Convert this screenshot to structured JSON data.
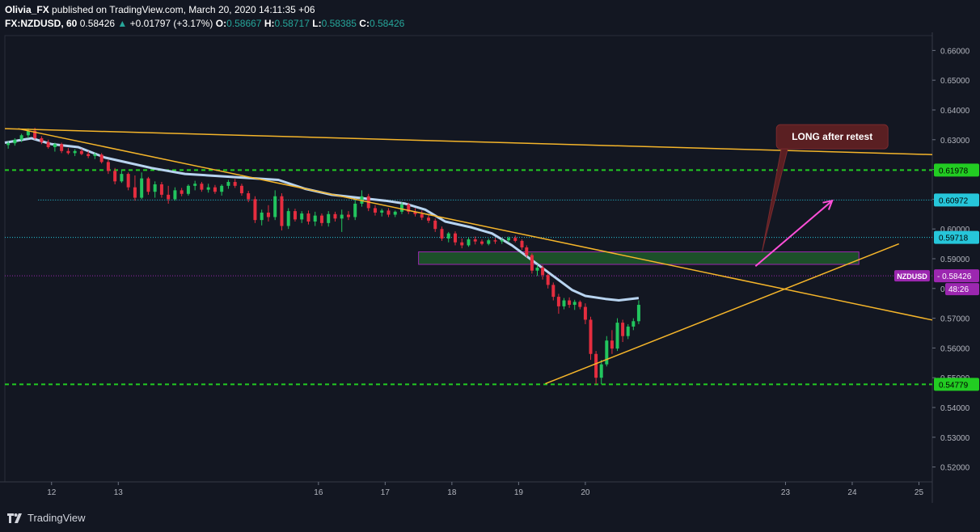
{
  "header": {
    "author": "Olivia_FX",
    "published_text": "published on TradingView.com, March 20, 2020 14:11:35 +06",
    "symbol": "FX:NZDUSD, 60",
    "last": "0.58426",
    "change_arrow": "▲",
    "change": "+0.01797 (+3.17%)",
    "o_label": "O:",
    "o_value": "0.58667",
    "h_label": "H:",
    "h_value": "0.58717",
    "l_label": "L:",
    "l_value": "0.58385",
    "c_label": "C:",
    "c_value": "0.58426"
  },
  "footer": {
    "brand": "TradingView"
  },
  "colors": {
    "background": "#131722",
    "up": "#22c55e",
    "down": "#e52d3f",
    "trendline": "#f5b52a",
    "support_resistance": "#22cc22",
    "cyan_level": "#26c6da",
    "moving_average": "#b8d4f0",
    "zone_fill": "#1f5a2a",
    "zone_border": "#9c27b0",
    "annotation_bg": "#5a1f22",
    "annotation_arrow": "#ff4fd8",
    "price_badge": "#9c27b0"
  },
  "chart_data": {
    "type": "candlestick",
    "symbol": "NZDUSD",
    "interval": "60",
    "ylim": [
      0.515,
      0.665
    ],
    "x_range_days": [
      11.3,
      25.2
    ],
    "x_ticks": [
      {
        "day": 12,
        "label": "12"
      },
      {
        "day": 13,
        "label": "13"
      },
      {
        "day": 16,
        "label": "16"
      },
      {
        "day": 17,
        "label": "17"
      },
      {
        "day": 18,
        "label": "18"
      },
      {
        "day": 19,
        "label": "19"
      },
      {
        "day": 20,
        "label": "20"
      },
      {
        "day": 23,
        "label": "23"
      },
      {
        "day": 24,
        "label": "24"
      },
      {
        "day": 25,
        "label": "25"
      }
    ],
    "y_ticks": [
      "0.66000",
      "0.65000",
      "0.64000",
      "0.63000",
      "0.62000",
      "0.61000",
      "0.60000",
      "0.59000",
      "0.58000",
      "0.57000",
      "0.56000",
      "0.55000",
      "0.54000",
      "0.53000",
      "0.52000"
    ],
    "price_labels": [
      {
        "value": "0.61978",
        "price": 0.61978,
        "kind": "green"
      },
      {
        "value": "0.60972",
        "price": 0.60972,
        "kind": "cyan"
      },
      {
        "value": "0.59718",
        "price": 0.59718,
        "kind": "cyan"
      },
      {
        "value": "0.54779",
        "price": 0.54779,
        "kind": "green"
      }
    ],
    "current_price": {
      "symbol": "NZDUSD",
      "value": "0.58426",
      "price": 0.58426,
      "countdown": "48:26"
    },
    "horizontal_lines": [
      {
        "price": 0.61978,
        "style": "dashed",
        "color": "#22cc22"
      },
      {
        "price": 0.60972,
        "style": "dotted",
        "color": "#26c6da",
        "from_day": 11.8
      },
      {
        "price": 0.59718,
        "style": "dotted",
        "color": "#26c6da"
      },
      {
        "price": 0.54779,
        "style": "dashed",
        "color": "#22cc22"
      }
    ],
    "trendlines": [
      {
        "from": [
          11.3,
          0.6337
        ],
        "to": [
          25.2,
          0.625
        ]
      },
      {
        "from": [
          11.5,
          0.6337
        ],
        "to": [
          25.2,
          0.5694
        ]
      },
      {
        "from": [
          19.4,
          0.548
        ],
        "to": [
          24.7,
          0.595
        ]
      }
    ],
    "zone": {
      "from_day": 17.5,
      "to_day": 24.1,
      "top": 0.5923,
      "bottom": 0.5881
    },
    "annotation": {
      "text": "LONG after retest",
      "box_day": 22.9,
      "box_price": 0.631,
      "pointer_price": 0.5925,
      "pointer_day": 22.65
    },
    "arrow": {
      "from": [
        22.55,
        0.5875
      ],
      "to": [
        23.7,
        0.6095
      ]
    },
    "moving_average": [
      [
        11.3,
        0.629
      ],
      [
        11.7,
        0.6305
      ],
      [
        12.0,
        0.6285
      ],
      [
        12.4,
        0.6275
      ],
      [
        12.8,
        0.624
      ],
      [
        13.1,
        0.6225
      ],
      [
        13.5,
        0.6205
      ],
      [
        14.0,
        0.6185
      ],
      [
        15.4,
        0.6165
      ],
      [
        15.8,
        0.6135
      ],
      [
        16.2,
        0.6115
      ],
      [
        16.6,
        0.6105
      ],
      [
        17.0,
        0.6095
      ],
      [
        17.3,
        0.6085
      ],
      [
        17.6,
        0.6065
      ],
      [
        17.9,
        0.6025
      ],
      [
        18.3,
        0.6005
      ],
      [
        18.6,
        0.5985
      ],
      [
        18.9,
        0.5945
      ],
      [
        19.2,
        0.5895
      ],
      [
        19.5,
        0.5845
      ],
      [
        19.8,
        0.5795
      ],
      [
        20.0,
        0.5775
      ],
      [
        20.3,
        0.5765
      ],
      [
        20.5,
        0.576
      ],
      [
        20.8,
        0.5768
      ]
    ],
    "candles": [
      {
        "d": 11.35,
        "o": 0.6282,
        "h": 0.6295,
        "l": 0.627,
        "c": 0.6288
      },
      {
        "d": 11.45,
        "o": 0.6288,
        "h": 0.6305,
        "l": 0.628,
        "c": 0.63
      },
      {
        "d": 11.55,
        "o": 0.63,
        "h": 0.632,
        "l": 0.6292,
        "c": 0.6315
      },
      {
        "d": 11.65,
        "o": 0.6315,
        "h": 0.6338,
        "l": 0.6305,
        "c": 0.633
      },
      {
        "d": 11.75,
        "o": 0.633,
        "h": 0.634,
        "l": 0.63,
        "c": 0.6305
      },
      {
        "d": 11.85,
        "o": 0.6305,
        "h": 0.6312,
        "l": 0.6285,
        "c": 0.6292
      },
      {
        "d": 11.95,
        "o": 0.6292,
        "h": 0.63,
        "l": 0.627,
        "c": 0.6275
      },
      {
        "d": 12.05,
        "o": 0.6275,
        "h": 0.629,
        "l": 0.626,
        "c": 0.6285
      },
      {
        "d": 12.15,
        "o": 0.6285,
        "h": 0.629,
        "l": 0.6255,
        "c": 0.6262
      },
      {
        "d": 12.25,
        "o": 0.6262,
        "h": 0.6272,
        "l": 0.625,
        "c": 0.6255
      },
      {
        "d": 12.35,
        "o": 0.6255,
        "h": 0.6268,
        "l": 0.6245,
        "c": 0.6262
      },
      {
        "d": 12.45,
        "o": 0.6262,
        "h": 0.627,
        "l": 0.6248,
        "c": 0.6252
      },
      {
        "d": 12.55,
        "o": 0.6252,
        "h": 0.6262,
        "l": 0.6238,
        "c": 0.6245
      },
      {
        "d": 12.65,
        "o": 0.6245,
        "h": 0.6258,
        "l": 0.6235,
        "c": 0.625
      },
      {
        "d": 12.75,
        "o": 0.625,
        "h": 0.6255,
        "l": 0.622,
        "c": 0.6225
      },
      {
        "d": 12.85,
        "o": 0.6225,
        "h": 0.6232,
        "l": 0.6185,
        "c": 0.6195
      },
      {
        "d": 12.95,
        "o": 0.6195,
        "h": 0.6205,
        "l": 0.615,
        "c": 0.616
      },
      {
        "d": 13.05,
        "o": 0.616,
        "h": 0.62,
        "l": 0.6155,
        "c": 0.6185
      },
      {
        "d": 13.15,
        "o": 0.6185,
        "h": 0.619,
        "l": 0.613,
        "c": 0.614
      },
      {
        "d": 13.25,
        "o": 0.614,
        "h": 0.618,
        "l": 0.6095,
        "c": 0.6105
      },
      {
        "d": 13.35,
        "o": 0.6105,
        "h": 0.619,
        "l": 0.61,
        "c": 0.617
      },
      {
        "d": 13.45,
        "o": 0.617,
        "h": 0.6175,
        "l": 0.6115,
        "c": 0.6125
      },
      {
        "d": 13.55,
        "o": 0.6125,
        "h": 0.616,
        "l": 0.6105,
        "c": 0.615
      },
      {
        "d": 13.65,
        "o": 0.615,
        "h": 0.6158,
        "l": 0.6105,
        "c": 0.6115
      },
      {
        "d": 13.75,
        "o": 0.6115,
        "h": 0.6145,
        "l": 0.6085,
        "c": 0.61
      },
      {
        "d": 13.85,
        "o": 0.61,
        "h": 0.614,
        "l": 0.6095,
        "c": 0.613
      },
      {
        "d": 13.95,
        "o": 0.613,
        "h": 0.6138,
        "l": 0.611,
        "c": 0.6118
      },
      {
        "d": 14.05,
        "o": 0.6118,
        "h": 0.615,
        "l": 0.6112,
        "c": 0.6145
      },
      {
        "d": 14.15,
        "o": 0.6145,
        "h": 0.6162,
        "l": 0.613,
        "c": 0.6152
      },
      {
        "d": 14.25,
        "o": 0.6152,
        "h": 0.6158,
        "l": 0.6125,
        "c": 0.6132
      },
      {
        "d": 14.35,
        "o": 0.6132,
        "h": 0.6152,
        "l": 0.6122,
        "c": 0.614
      },
      {
        "d": 14.45,
        "o": 0.614,
        "h": 0.6148,
        "l": 0.6118,
        "c": 0.6125
      },
      {
        "d": 14.55,
        "o": 0.6125,
        "h": 0.615,
        "l": 0.6112,
        "c": 0.6145
      },
      {
        "d": 14.65,
        "o": 0.6145,
        "h": 0.6165,
        "l": 0.6135,
        "c": 0.6158
      },
      {
        "d": 14.75,
        "o": 0.6158,
        "h": 0.6168,
        "l": 0.6138,
        "c": 0.6145
      },
      {
        "d": 14.85,
        "o": 0.6145,
        "h": 0.6152,
        "l": 0.6112,
        "c": 0.612
      },
      {
        "d": 14.95,
        "o": 0.612,
        "h": 0.6128,
        "l": 0.609,
        "c": 0.61
      },
      {
        "d": 15.05,
        "o": 0.61,
        "h": 0.611,
        "l": 0.602,
        "c": 0.603
      },
      {
        "d": 15.15,
        "o": 0.603,
        "h": 0.6065,
        "l": 0.6012,
        "c": 0.6055
      },
      {
        "d": 15.25,
        "o": 0.6055,
        "h": 0.608,
        "l": 0.6025,
        "c": 0.604
      },
      {
        "d": 15.35,
        "o": 0.604,
        "h": 0.613,
        "l": 0.603,
        "c": 0.611
      },
      {
        "d": 15.45,
        "o": 0.611,
        "h": 0.612,
        "l": 0.5995,
        "c": 0.601
      },
      {
        "d": 15.55,
        "o": 0.601,
        "h": 0.607,
        "l": 0.6,
        "c": 0.606
      },
      {
        "d": 15.65,
        "o": 0.606,
        "h": 0.6068,
        "l": 0.6025,
        "c": 0.6032
      },
      {
        "d": 15.75,
        "o": 0.6032,
        "h": 0.606,
        "l": 0.602,
        "c": 0.6052
      },
      {
        "d": 15.85,
        "o": 0.6052,
        "h": 0.6062,
        "l": 0.6015,
        "c": 0.6025
      },
      {
        "d": 15.95,
        "o": 0.6025,
        "h": 0.6058,
        "l": 0.601,
        "c": 0.6045
      },
      {
        "d": 16.05,
        "o": 0.6045,
        "h": 0.6052,
        "l": 0.601,
        "c": 0.602
      },
      {
        "d": 16.15,
        "o": 0.602,
        "h": 0.606,
        "l": 0.6008,
        "c": 0.605
      },
      {
        "d": 16.25,
        "o": 0.605,
        "h": 0.6058,
        "l": 0.6025,
        "c": 0.6035
      },
      {
        "d": 16.35,
        "o": 0.6035,
        "h": 0.6065,
        "l": 0.599,
        "c": 0.6048
      },
      {
        "d": 16.45,
        "o": 0.6048,
        "h": 0.606,
        "l": 0.603,
        "c": 0.604
      },
      {
        "d": 16.55,
        "o": 0.604,
        "h": 0.61,
        "l": 0.603,
        "c": 0.6085
      },
      {
        "d": 16.65,
        "o": 0.6085,
        "h": 0.613,
        "l": 0.6075,
        "c": 0.611
      },
      {
        "d": 16.75,
        "o": 0.611,
        "h": 0.6118,
        "l": 0.606,
        "c": 0.607
      },
      {
        "d": 16.85,
        "o": 0.607,
        "h": 0.608,
        "l": 0.6045,
        "c": 0.6055
      },
      {
        "d": 16.95,
        "o": 0.6055,
        "h": 0.6068,
        "l": 0.6042,
        "c": 0.6062
      },
      {
        "d": 17.05,
        "o": 0.6062,
        "h": 0.607,
        "l": 0.604,
        "c": 0.6048
      },
      {
        "d": 17.15,
        "o": 0.6048,
        "h": 0.6062,
        "l": 0.604,
        "c": 0.6058
      },
      {
        "d": 17.25,
        "o": 0.6058,
        "h": 0.609,
        "l": 0.605,
        "c": 0.6082
      },
      {
        "d": 17.35,
        "o": 0.6082,
        "h": 0.6088,
        "l": 0.605,
        "c": 0.6058
      },
      {
        "d": 17.45,
        "o": 0.6058,
        "h": 0.607,
        "l": 0.6042,
        "c": 0.605
      },
      {
        "d": 17.55,
        "o": 0.605,
        "h": 0.6062,
        "l": 0.603,
        "c": 0.6038
      },
      {
        "d": 17.65,
        "o": 0.6038,
        "h": 0.6048,
        "l": 0.602,
        "c": 0.6028
      },
      {
        "d": 17.75,
        "o": 0.6028,
        "h": 0.6035,
        "l": 0.599,
        "c": 0.6
      },
      {
        "d": 17.85,
        "o": 0.6,
        "h": 0.6008,
        "l": 0.596,
        "c": 0.5968
      },
      {
        "d": 17.95,
        "o": 0.5968,
        "h": 0.599,
        "l": 0.5955,
        "c": 0.5985
      },
      {
        "d": 18.05,
        "o": 0.5985,
        "h": 0.5992,
        "l": 0.5945,
        "c": 0.5955
      },
      {
        "d": 18.15,
        "o": 0.5955,
        "h": 0.5968,
        "l": 0.5935,
        "c": 0.5945
      },
      {
        "d": 18.25,
        "o": 0.5945,
        "h": 0.5972,
        "l": 0.594,
        "c": 0.5965
      },
      {
        "d": 18.35,
        "o": 0.5965,
        "h": 0.5975,
        "l": 0.5948,
        "c": 0.5958
      },
      {
        "d": 18.45,
        "o": 0.5958,
        "h": 0.5965,
        "l": 0.5945,
        "c": 0.595
      },
      {
        "d": 18.55,
        "o": 0.595,
        "h": 0.5968,
        "l": 0.5945,
        "c": 0.5962
      },
      {
        "d": 18.65,
        "o": 0.5962,
        "h": 0.597,
        "l": 0.595,
        "c": 0.5958
      },
      {
        "d": 18.75,
        "o": 0.5958,
        "h": 0.5968,
        "l": 0.595,
        "c": 0.5962
      },
      {
        "d": 18.85,
        "o": 0.5962,
        "h": 0.5975,
        "l": 0.5955,
        "c": 0.597
      },
      {
        "d": 18.95,
        "o": 0.597,
        "h": 0.5978,
        "l": 0.5955,
        "c": 0.596
      },
      {
        "d": 19.05,
        "o": 0.596,
        "h": 0.5965,
        "l": 0.593,
        "c": 0.5938
      },
      {
        "d": 19.12,
        "o": 0.5938,
        "h": 0.5945,
        "l": 0.5905,
        "c": 0.5912
      },
      {
        "d": 19.2,
        "o": 0.5912,
        "h": 0.5918,
        "l": 0.585,
        "c": 0.586
      },
      {
        "d": 19.28,
        "o": 0.586,
        "h": 0.588,
        "l": 0.5842,
        "c": 0.587
      },
      {
        "d": 19.36,
        "o": 0.587,
        "h": 0.5878,
        "l": 0.583,
        "c": 0.5845
      },
      {
        "d": 19.44,
        "o": 0.5845,
        "h": 0.585,
        "l": 0.58,
        "c": 0.5812
      },
      {
        "d": 19.52,
        "o": 0.5812,
        "h": 0.582,
        "l": 0.576,
        "c": 0.5772
      },
      {
        "d": 19.6,
        "o": 0.5772,
        "h": 0.5782,
        "l": 0.5715,
        "c": 0.574
      },
      {
        "d": 19.68,
        "o": 0.574,
        "h": 0.5768,
        "l": 0.573,
        "c": 0.576
      },
      {
        "d": 19.76,
        "o": 0.576,
        "h": 0.577,
        "l": 0.5735,
        "c": 0.5745
      },
      {
        "d": 19.84,
        "o": 0.5745,
        "h": 0.5762,
        "l": 0.5728,
        "c": 0.5755
      },
      {
        "d": 19.92,
        "o": 0.5755,
        "h": 0.576,
        "l": 0.573,
        "c": 0.5738
      },
      {
        "d": 20.0,
        "o": 0.5738,
        "h": 0.575,
        "l": 0.568,
        "c": 0.5695
      },
      {
        "d": 20.08,
        "o": 0.5695,
        "h": 0.5705,
        "l": 0.556,
        "c": 0.558
      },
      {
        "d": 20.16,
        "o": 0.558,
        "h": 0.559,
        "l": 0.5478,
        "c": 0.55
      },
      {
        "d": 20.24,
        "o": 0.55,
        "h": 0.556,
        "l": 0.5478,
        "c": 0.5545
      },
      {
        "d": 20.32,
        "o": 0.5545,
        "h": 0.564,
        "l": 0.5538,
        "c": 0.5625
      },
      {
        "d": 20.4,
        "o": 0.5625,
        "h": 0.566,
        "l": 0.558,
        "c": 0.5598
      },
      {
        "d": 20.48,
        "o": 0.5598,
        "h": 0.57,
        "l": 0.559,
        "c": 0.5685
      },
      {
        "d": 20.56,
        "o": 0.5685,
        "h": 0.5695,
        "l": 0.562,
        "c": 0.564
      },
      {
        "d": 20.64,
        "o": 0.564,
        "h": 0.568,
        "l": 0.563,
        "c": 0.5672
      },
      {
        "d": 20.72,
        "o": 0.5672,
        "h": 0.57,
        "l": 0.566,
        "c": 0.569
      },
      {
        "d": 20.8,
        "o": 0.569,
        "h": 0.576,
        "l": 0.568,
        "c": 0.5745
      }
    ]
  }
}
